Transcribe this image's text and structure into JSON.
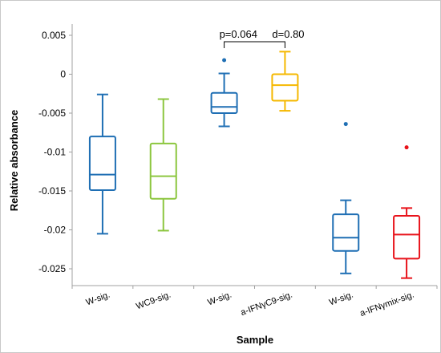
{
  "chart_data": {
    "type": "box",
    "title": "",
    "xlabel": "Sample",
    "ylabel": "Relative absorbance",
    "ylim": [
      -0.027,
      0.005
    ],
    "yticks": [
      0.005,
      0,
      -0.005,
      -0.01,
      -0.015,
      -0.02,
      -0.025
    ],
    "ytick_labels": [
      "0.005",
      "0",
      "-0.005",
      "-0.01",
      "-0.015",
      "-0.02",
      "-0.025"
    ],
    "grid": false,
    "categories": [
      "W-sig.",
      "WC9-sig.",
      "W-sig.",
      "a-IFNγC9-sig.",
      "W-sig.",
      "a-IFNγmix-sig."
    ],
    "boxes": [
      {
        "label": "W-sig.",
        "color": "#1f6fb4",
        "min": -0.0205,
        "q1": -0.0149,
        "median": -0.0129,
        "q3": -0.008,
        "max": -0.0026,
        "outliers": []
      },
      {
        "label": "WC9-sig.",
        "color": "#8cc63f",
        "min": -0.0201,
        "q1": -0.016,
        "median": -0.0131,
        "q3": -0.0089,
        "max": -0.0032,
        "outliers": []
      },
      {
        "label": "W-sig.",
        "color": "#1f6fb4",
        "min": -0.0067,
        "q1": -0.005,
        "median": -0.0042,
        "q3": -0.0024,
        "max": 0.0001,
        "outliers": [
          0.0018
        ]
      },
      {
        "label": "a-IFNγC9-sig.",
        "color": "#f5b800",
        "min": -0.0047,
        "q1": -0.0034,
        "median": -0.0014,
        "q3": 0.0,
        "max": 0.0029,
        "outliers": []
      },
      {
        "label": "W-sig.",
        "color": "#1f6fb4",
        "min": -0.0256,
        "q1": -0.0227,
        "median": -0.021,
        "q3": -0.018,
        "max": -0.0162,
        "outliers": [
          -0.0064
        ]
      },
      {
        "label": "a-IFNγmix-sig.",
        "color": "#e8131b",
        "min": -0.0262,
        "q1": -0.0237,
        "median": -0.0206,
        "q3": -0.0182,
        "max": -0.0172,
        "outliers": [
          -0.0094
        ]
      }
    ],
    "annotations": [
      {
        "text": "p=0.064",
        "between": [
          2,
          3
        ]
      },
      {
        "text": "d=0.80",
        "between": [
          2,
          3
        ]
      }
    ]
  }
}
